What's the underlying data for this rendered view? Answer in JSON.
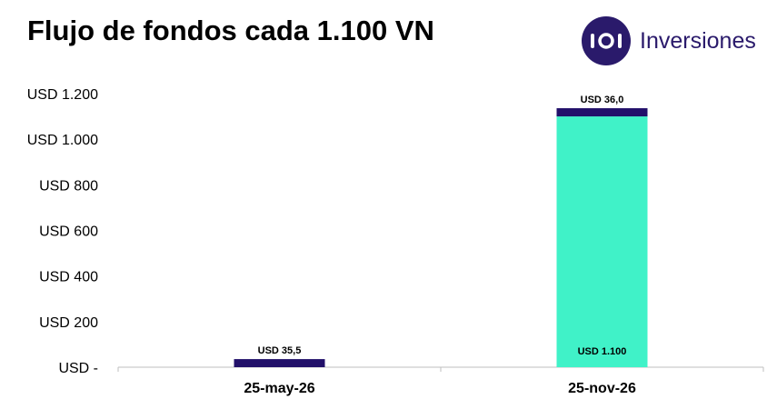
{
  "title": "Flujo de fondos cada 1.100 VN",
  "brand": {
    "logo_text": "iOl",
    "name": "Inversiones",
    "color": "#2a1a6b"
  },
  "colors": {
    "interest": "#22106a",
    "principal": "#40f2c8",
    "axis": "#bfbfbf"
  },
  "chart_data": {
    "type": "bar",
    "stacked": true,
    "title": "Flujo de fondos cada 1.100 VN",
    "categories": [
      "25-may-26",
      "25-nov-26"
    ],
    "series": [
      {
        "key": "principal",
        "values": [
          0,
          1100
        ],
        "labels": [
          "",
          "USD 1.100"
        ]
      },
      {
        "key": "interest",
        "values": [
          35.5,
          36.0
        ],
        "labels": [
          "USD 35,5",
          "USD 36,0"
        ]
      }
    ],
    "ylim": [
      0,
      1200
    ],
    "yticks": [
      0,
      200,
      400,
      600,
      800,
      1000,
      1200
    ],
    "ytick_labels": [
      "USD -",
      "USD 200",
      "USD 400",
      "USD 600",
      "USD 800",
      "USD 1.000",
      "USD 1.200"
    ],
    "grid": false,
    "legend": "none"
  }
}
